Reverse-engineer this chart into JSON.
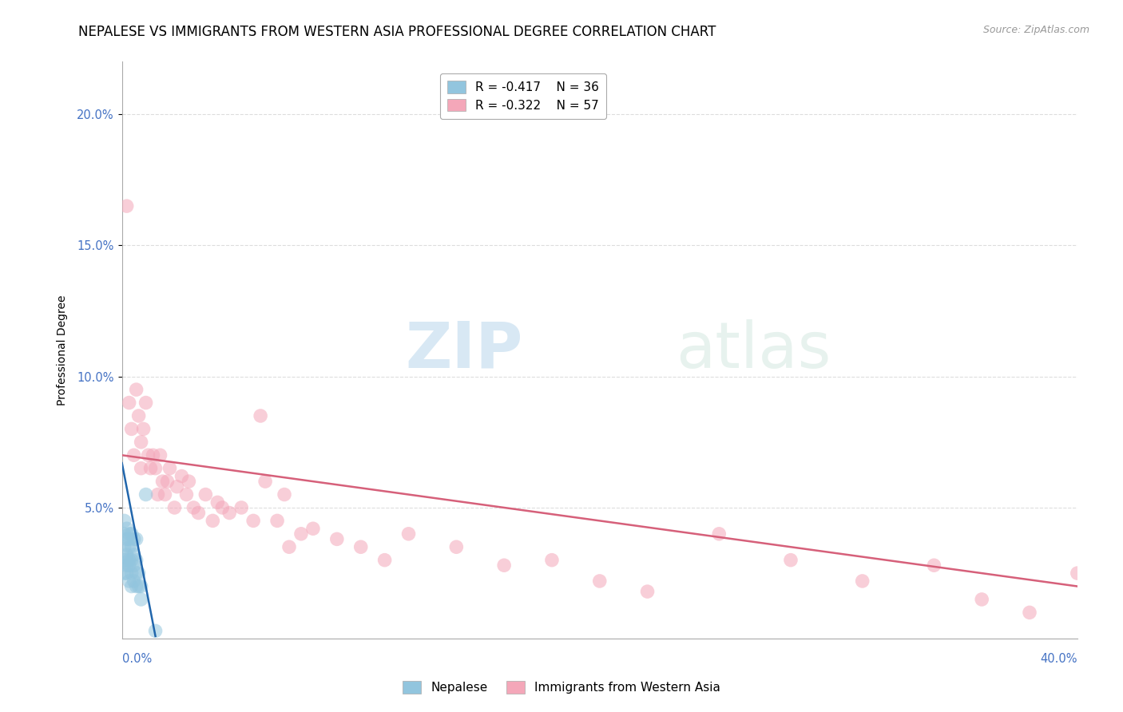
{
  "title": "NEPALESE VS IMMIGRANTS FROM WESTERN ASIA PROFESSIONAL DEGREE CORRELATION CHART",
  "source": "Source: ZipAtlas.com",
  "ylabel": "Professional Degree",
  "xmin": 0.0,
  "xmax": 0.4,
  "ymin": 0.0,
  "ymax": 0.22,
  "yticks": [
    0.05,
    0.1,
    0.15,
    0.2
  ],
  "ytick_labels": [
    "5.0%",
    "10.0%",
    "15.0%",
    "20.0%"
  ],
  "legend_r1": "R = -0.417",
  "legend_n1": "N = 36",
  "legend_r2": "R = -0.322",
  "legend_n2": "N = 57",
  "color_blue": "#92c5de",
  "color_pink": "#f4a7b9",
  "color_line_blue": "#2166ac",
  "color_line_pink": "#d6607a",
  "watermark_zip": "ZIP",
  "watermark_atlas": "atlas",
  "background_color": "#ffffff",
  "grid_color": "#dddddd",
  "title_fontsize": 12,
  "axis_label_fontsize": 10,
  "nepalese_x": [
    0.001,
    0.001,
    0.001,
    0.001,
    0.001,
    0.002,
    0.002,
    0.002,
    0.002,
    0.002,
    0.002,
    0.003,
    0.003,
    0.003,
    0.003,
    0.003,
    0.003,
    0.004,
    0.004,
    0.004,
    0.004,
    0.004,
    0.005,
    0.005,
    0.005,
    0.005,
    0.006,
    0.006,
    0.006,
    0.006,
    0.007,
    0.007,
    0.008,
    0.008,
    0.01,
    0.014
  ],
  "nepalese_y": [
    0.03,
    0.035,
    0.04,
    0.045,
    0.025,
    0.028,
    0.032,
    0.038,
    0.042,
    0.025,
    0.03,
    0.022,
    0.028,
    0.035,
    0.04,
    0.03,
    0.038,
    0.025,
    0.03,
    0.035,
    0.04,
    0.02,
    0.022,
    0.028,
    0.032,
    0.038,
    0.02,
    0.025,
    0.03,
    0.038,
    0.02,
    0.025,
    0.015,
    0.02,
    0.055,
    0.003
  ],
  "western_asia_x": [
    0.002,
    0.003,
    0.004,
    0.005,
    0.006,
    0.007,
    0.008,
    0.008,
    0.009,
    0.01,
    0.011,
    0.012,
    0.013,
    0.014,
    0.015,
    0.016,
    0.017,
    0.018,
    0.019,
    0.02,
    0.022,
    0.023,
    0.025,
    0.027,
    0.028,
    0.03,
    0.032,
    0.035,
    0.038,
    0.04,
    0.042,
    0.045,
    0.05,
    0.055,
    0.058,
    0.06,
    0.065,
    0.068,
    0.07,
    0.075,
    0.08,
    0.09,
    0.1,
    0.11,
    0.12,
    0.14,
    0.16,
    0.18,
    0.2,
    0.22,
    0.25,
    0.28,
    0.31,
    0.34,
    0.36,
    0.38,
    0.4
  ],
  "western_asia_y": [
    0.165,
    0.09,
    0.08,
    0.07,
    0.095,
    0.085,
    0.075,
    0.065,
    0.08,
    0.09,
    0.07,
    0.065,
    0.07,
    0.065,
    0.055,
    0.07,
    0.06,
    0.055,
    0.06,
    0.065,
    0.05,
    0.058,
    0.062,
    0.055,
    0.06,
    0.05,
    0.048,
    0.055,
    0.045,
    0.052,
    0.05,
    0.048,
    0.05,
    0.045,
    0.085,
    0.06,
    0.045,
    0.055,
    0.035,
    0.04,
    0.042,
    0.038,
    0.035,
    0.03,
    0.04,
    0.035,
    0.028,
    0.03,
    0.022,
    0.018,
    0.04,
    0.03,
    0.022,
    0.028,
    0.015,
    0.01,
    0.025
  ],
  "nep_line_x0": 0.0,
  "nep_line_x1": 0.014,
  "nep_line_y0": 0.067,
  "nep_line_y1": 0.001,
  "wa_line_x0": 0.0,
  "wa_line_x1": 0.4,
  "wa_line_y0": 0.07,
  "wa_line_y1": 0.02
}
